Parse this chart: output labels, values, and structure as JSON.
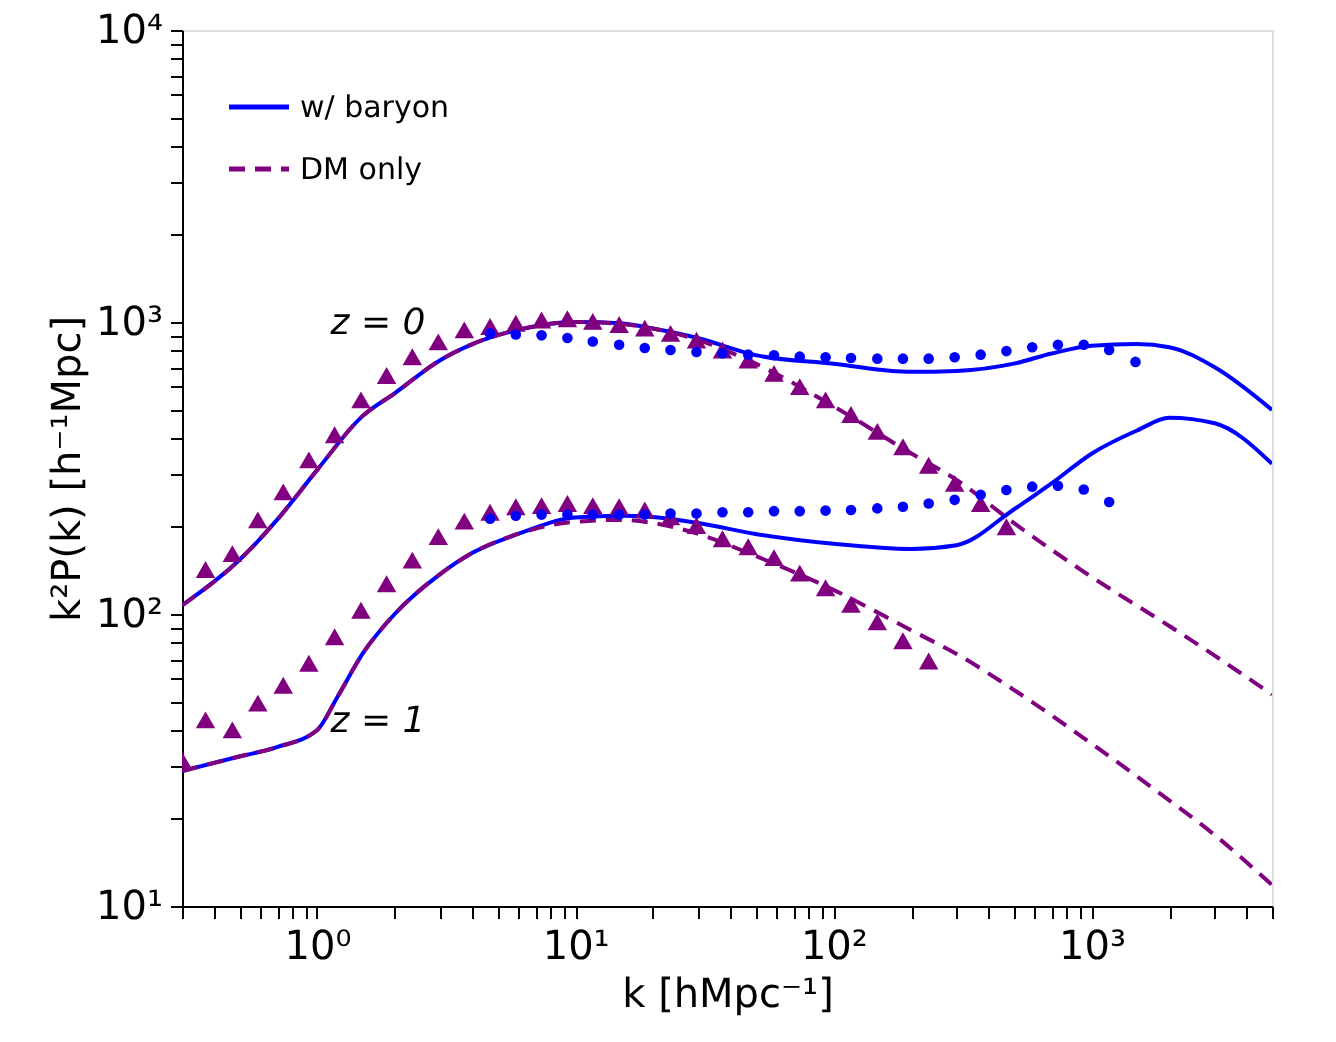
{
  "chart_data": {
    "type": "line",
    "xlabel": "k [hMpc⁻¹]",
    "ylabel": "k²P(k) [h⁻¹Mpc]",
    "log": "xy",
    "grid": false,
    "legend": "top left",
    "xlim": [
      0.3,
      5000
    ],
    "ylim": [
      10,
      10000
    ],
    "xticks": [
      {
        "value": 0.3,
        "label": null
      },
      {
        "value": 0.4,
        "label": null
      },
      {
        "value": 0.5,
        "label": null
      },
      {
        "value": 0.6,
        "label": null
      },
      {
        "value": 0.7,
        "label": null
      },
      {
        "value": 0.8,
        "label": null
      },
      {
        "value": 0.9,
        "label": null
      },
      {
        "value": 1,
        "label": "10⁰"
      },
      {
        "value": 2,
        "label": null
      },
      {
        "value": 3,
        "label": null
      },
      {
        "value": 4,
        "label": null
      },
      {
        "value": 5,
        "label": null
      },
      {
        "value": 6,
        "label": null
      },
      {
        "value": 7,
        "label": null
      },
      {
        "value": 8,
        "label": null
      },
      {
        "value": 9,
        "label": null
      },
      {
        "value": 10,
        "label": "10¹"
      },
      {
        "value": 20,
        "label": null
      },
      {
        "value": 30,
        "label": null
      },
      {
        "value": 40,
        "label": null
      },
      {
        "value": 50,
        "label": null
      },
      {
        "value": 60,
        "label": null
      },
      {
        "value": 70,
        "label": null
      },
      {
        "value": 80,
        "label": null
      },
      {
        "value": 90,
        "label": null
      },
      {
        "value": 100,
        "label": "10²"
      },
      {
        "value": 200,
        "label": null
      },
      {
        "value": 300,
        "label": null
      },
      {
        "value": 400,
        "label": null
      },
      {
        "value": 500,
        "label": null
      },
      {
        "value": 600,
        "label": null
      },
      {
        "value": 700,
        "label": null
      },
      {
        "value": 800,
        "label": null
      },
      {
        "value": 900,
        "label": null
      },
      {
        "value": 1000,
        "label": "10³"
      },
      {
        "value": 2000,
        "label": null
      },
      {
        "value": 3000,
        "label": null
      },
      {
        "value": 4000,
        "label": null
      },
      {
        "value": 5000,
        "label": null
      }
    ],
    "yticks": [
      {
        "value": 10,
        "label": "10¹"
      },
      {
        "value": 20,
        "label": null
      },
      {
        "value": 30,
        "label": null
      },
      {
        "value": 40,
        "label": null
      },
      {
        "value": 50,
        "label": null
      },
      {
        "value": 60,
        "label": null
      },
      {
        "value": 70,
        "label": null
      },
      {
        "value": 80,
        "label": null
      },
      {
        "value": 90,
        "label": null
      },
      {
        "value": 100,
        "label": "10²"
      },
      {
        "value": 200,
        "label": null
      },
      {
        "value": 300,
        "label": null
      },
      {
        "value": 400,
        "label": null
      },
      {
        "value": 500,
        "label": null
      },
      {
        "value": 600,
        "label": null
      },
      {
        "value": 700,
        "label": null
      },
      {
        "value": 800,
        "label": null
      },
      {
        "value": 900,
        "label": null
      },
      {
        "value": 1000,
        "label": "10³"
      },
      {
        "value": 2000,
        "label": null
      },
      {
        "value": 3000,
        "label": null
      },
      {
        "value": 4000,
        "label": null
      },
      {
        "value": 5000,
        "label": null
      },
      {
        "value": 6000,
        "label": null
      },
      {
        "value": 7000,
        "label": null
      },
      {
        "value": 8000,
        "label": null
      },
      {
        "value": 9000,
        "label": null
      },
      {
        "value": 10000,
        "label": "10⁴"
      }
    ],
    "annotations": [
      "z = 0",
      "z = 1"
    ],
    "series": [
      {
        "name": "w/ baryon",
        "line_style": "solid",
        "color": "#0000ff",
        "x": [
          0.3,
          0.5,
          0.7,
          1,
          1.5,
          2,
          3,
          4,
          6,
          10,
          15,
          20,
          30,
          50,
          100,
          200,
          300,
          500,
          700,
          1000,
          1500,
          2000,
          3000,
          5000
        ],
        "values": [
          107,
          153,
          210,
          311,
          476,
          570,
          740,
          840,
          940,
          1000,
          990,
          950,
          880,
          770,
          720,
          675,
          680,
          720,
          780,
          830,
          840,
          820,
          700,
          500
        ]
      },
      {
        "name": "DM only",
        "line_style": "dashed",
        "color": "#800080",
        "x": [
          0.3,
          0.5,
          0.7,
          1,
          1.5,
          2,
          3,
          4,
          6,
          10,
          15,
          20,
          30,
          50,
          100,
          200,
          300,
          500,
          1000,
          2000,
          3000,
          5000
        ],
        "values": [
          107,
          153,
          210,
          311,
          476,
          570,
          740,
          840,
          940,
          1000,
          985,
          950,
          867,
          720,
          515,
          355,
          288,
          205,
          134,
          91,
          72,
          53
        ]
      },
      {
        "line_style": "solid",
        "color": "#0000ff",
        "x": [
          0.3,
          0.5,
          0.7,
          1,
          1.2,
          1.5,
          2,
          3,
          4,
          6,
          10,
          15,
          20,
          30,
          50,
          100,
          200,
          300,
          500,
          700,
          1000,
          1500,
          2000,
          3000,
          5000
        ],
        "values": [
          29,
          32.5,
          35,
          40,
          52,
          73,
          100,
          137,
          162,
          188,
          214,
          217,
          215,
          205,
          188,
          174,
          167,
          172,
          228,
          280,
          354,
          425,
          470,
          450,
          327
        ]
      },
      {
        "line_style": "dashed",
        "color": "#800080",
        "x": [
          0.3,
          0.5,
          0.7,
          1,
          1.2,
          1.5,
          2,
          3,
          4,
          6,
          10,
          15,
          20,
          30,
          50,
          100,
          200,
          300,
          500,
          1000,
          2000,
          3000,
          5000
        ],
        "values": [
          29,
          32.5,
          35,
          40,
          52,
          73,
          100,
          137,
          162,
          188,
          207,
          210,
          205,
          188,
          158,
          121,
          88,
          73,
          55,
          36,
          23,
          17.5,
          11.8
        ]
      },
      {
        "type": "scatter",
        "marker": "triangle",
        "color": "#800080",
        "x": [
          0.37,
          0.47,
          0.59,
          0.74,
          0.93,
          1.17,
          1.48,
          1.86,
          2.34,
          2.95,
          3.72,
          4.68,
          5.89,
          7.41,
          9.33,
          11.7,
          14.8,
          18.6,
          23.4,
          29.5,
          37.2,
          46.8,
          58.9,
          74.1,
          93.3,
          117,
          148,
          186,
          234,
          295,
          372,
          468
        ],
        "values": [
          142,
          161,
          210,
          262,
          337,
          411,
          541,
          656,
          760,
          855,
          940,
          965,
          990,
          1016,
          1026,
          1005,
          980,
          953,
          914,
          867,
          802,
          741,
          667,
          601,
          541,
          482,
          422,
          374,
          323,
          280,
          239,
          199
        ]
      },
      {
        "type": "scatter",
        "marker": "triangle",
        "color": "#800080",
        "x": [
          0.3,
          0.37,
          0.47,
          0.59,
          0.74,
          0.93,
          1.17,
          1.48,
          1.86,
          2.34,
          2.95,
          3.72,
          4.68,
          5.89,
          7.41,
          9.33,
          11.7,
          14.8,
          18.6,
          23.4,
          29.5,
          37.2,
          46.8,
          58.9,
          74.1,
          93.3,
          117,
          148,
          186,
          234
        ],
        "values": [
          31.6,
          43.4,
          40.1,
          49.5,
          57,
          67.8,
          83.6,
          103,
          127,
          153,
          184,
          208,
          223,
          233,
          235,
          239,
          235,
          233,
          227,
          215,
          201,
          181,
          170,
          156,
          138,
          123,
          108,
          94,
          81,
          69
        ]
      },
      {
        "type": "scatter",
        "marker": "circle",
        "color": "#0000ff",
        "x": [
          4.68,
          5.89,
          7.41,
          9.33,
          11.7,
          14.8,
          18.6,
          23.4,
          29.5,
          37.2,
          46.8,
          58.9,
          74.1,
          93.3,
          117,
          148,
          186,
          234,
          295,
          372,
          468,
          589,
          741,
          933,
          1170,
          1480
        ],
        "values": [
          914,
          906,
          900,
          881,
          858,
          836,
          815,
          802,
          789,
          781,
          773,
          769,
          761,
          757,
          753,
          749,
          749,
          749,
          757,
          773,
          795,
          819,
          836,
          836,
          802,
          730
        ]
      },
      {
        "type": "scatter",
        "marker": "circle",
        "color": "#0000ff",
        "x": [
          4.68,
          5.89,
          7.41,
          9.33,
          11.7,
          14.8,
          18.6,
          23.4,
          29.5,
          37.2,
          46.8,
          58.9,
          74.1,
          93.3,
          117,
          148,
          186,
          234,
          295,
          372,
          468,
          589,
          741,
          933,
          1170
        ],
        "values": [
          212,
          217,
          219,
          219,
          219,
          219,
          219,
          221,
          221,
          223,
          223,
          225,
          225,
          226,
          227,
          230,
          233,
          239,
          246,
          256,
          266,
          273,
          275,
          267,
          242
        ]
      }
    ]
  }
}
